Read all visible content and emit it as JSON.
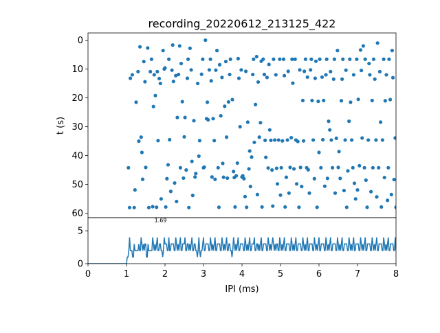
{
  "chart_data": [
    {
      "type": "scatter",
      "panel": "top",
      "title": "recording_20220612_213125_422",
      "xlabel": "",
      "ylabel": "t (s)",
      "xlim": [
        0,
        8
      ],
      "ylim": [
        61.5,
        -2.5
      ],
      "y_inverted": true,
      "yticks": [
        "0",
        "10",
        "20",
        "30",
        "40",
        "50",
        "60"
      ],
      "grid": false,
      "color": "#1f77b4",
      "points": [
        [
          1.05,
          44.2
        ],
        [
          1.08,
          58.0
        ],
        [
          1.1,
          13.2
        ],
        [
          1.15,
          12.0
        ],
        [
          1.2,
          58.0
        ],
        [
          1.22,
          51.9
        ],
        [
          1.25,
          21.5
        ],
        [
          1.3,
          10.9
        ],
        [
          1.32,
          35.0
        ],
        [
          1.35,
          2.3
        ],
        [
          1.38,
          33.6
        ],
        [
          1.4,
          38.9
        ],
        [
          1.42,
          48.2
        ],
        [
          1.45,
          7.4
        ],
        [
          1.48,
          14.4
        ],
        [
          1.5,
          44.1
        ],
        [
          1.55,
          2.7
        ],
        [
          1.58,
          58.0
        ],
        [
          1.62,
          10.9
        ],
        [
          1.65,
          6.6
        ],
        [
          1.68,
          57.7
        ],
        [
          1.7,
          23.0
        ],
        [
          1.72,
          12.0
        ],
        [
          1.75,
          19.2
        ],
        [
          1.78,
          57.9
        ],
        [
          1.8,
          10.9
        ],
        [
          1.82,
          34.8
        ],
        [
          1.85,
          13.3
        ],
        [
          1.88,
          15.0
        ],
        [
          1.9,
          55.0
        ],
        [
          1.95,
          3.6
        ],
        [
          1.98,
          10.0
        ],
        [
          2.0,
          9.6
        ],
        [
          2.02,
          57.8
        ],
        [
          2.05,
          48.0
        ],
        [
          2.08,
          43.2
        ],
        [
          2.1,
          6.6
        ],
        [
          2.12,
          34.5
        ],
        [
          2.15,
          52.4
        ],
        [
          2.18,
          10.4
        ],
        [
          2.2,
          1.7
        ],
        [
          2.22,
          14.3
        ],
        [
          2.25,
          49.5
        ],
        [
          2.28,
          12.3
        ],
        [
          2.3,
          55.9
        ],
        [
          2.32,
          26.8
        ],
        [
          2.35,
          11.9
        ],
        [
          2.38,
          2.0
        ],
        [
          2.4,
          44.2
        ],
        [
          2.42,
          8.1
        ],
        [
          2.45,
          21.3
        ],
        [
          2.48,
          47.8
        ],
        [
          2.5,
          33.5
        ],
        [
          2.52,
          26.8
        ],
        [
          2.55,
          45.0
        ],
        [
          2.58,
          13.2
        ],
        [
          2.6,
          6.6
        ],
        [
          2.62,
          58.0
        ],
        [
          2.65,
          2.8
        ],
        [
          2.68,
          10.3
        ],
        [
          2.7,
          42.0
        ],
        [
          2.72,
          53.8
        ],
        [
          2.75,
          27.9
        ],
        [
          2.78,
          47.4
        ],
        [
          2.8,
          46.2
        ],
        [
          2.85,
          15.0
        ],
        [
          2.88,
          40.2
        ],
        [
          2.9,
          34.8
        ],
        [
          2.95,
          11.8
        ],
        [
          2.98,
          6.6
        ],
        [
          3.0,
          44.2
        ],
        [
          3.02,
          44.0
        ],
        [
          3.05,
          0.0
        ],
        [
          3.08,
          27.2
        ],
        [
          3.1,
          21.5
        ],
        [
          3.12,
          27.6
        ],
        [
          3.15,
          10.3
        ],
        [
          3.18,
          6.6
        ],
        [
          3.2,
          14.1
        ],
        [
          3.22,
          47.4
        ],
        [
          3.25,
          27.2
        ],
        [
          3.28,
          34.8
        ],
        [
          3.3,
          48.2
        ],
        [
          3.32,
          10.4
        ],
        [
          3.35,
          3.6
        ],
        [
          3.38,
          44.2
        ],
        [
          3.4,
          57.9
        ],
        [
          3.42,
          8.5
        ],
        [
          3.45,
          26.2
        ],
        [
          3.48,
          12.9
        ],
        [
          3.5,
          42.7
        ],
        [
          3.52,
          47.5
        ],
        [
          3.55,
          22.9
        ],
        [
          3.58,
          7.4
        ],
        [
          3.6,
          33.6
        ],
        [
          3.62,
          47.8
        ],
        [
          3.65,
          21.4
        ],
        [
          3.68,
          11.9
        ],
        [
          3.7,
          6.6
        ],
        [
          3.75,
          20.6
        ],
        [
          3.78,
          45.5
        ],
        [
          3.8,
          47.6
        ],
        [
          3.82,
          57.8
        ],
        [
          3.85,
          47.0
        ],
        [
          3.88,
          42.6
        ],
        [
          3.9,
          6.4
        ],
        [
          3.92,
          13.2
        ],
        [
          3.95,
          30.0
        ],
        [
          3.98,
          10.3
        ],
        [
          4.0,
          47.4
        ],
        [
          4.02,
          47.0
        ],
        [
          4.05,
          48.0
        ],
        [
          4.08,
          54.2
        ],
        [
          4.1,
          10.8
        ],
        [
          4.12,
          57.9
        ],
        [
          4.15,
          28.4
        ],
        [
          4.18,
          44.6
        ],
        [
          4.2,
          38.4
        ],
        [
          4.22,
          50.7
        ],
        [
          4.25,
          40.5
        ],
        [
          4.28,
          11.9
        ],
        [
          4.3,
          6.6
        ],
        [
          4.32,
          35.4
        ],
        [
          4.35,
          22.3
        ],
        [
          4.38,
          5.7
        ],
        [
          4.4,
          53.5
        ],
        [
          4.42,
          14.5
        ],
        [
          4.45,
          33.6
        ],
        [
          4.48,
          28.6
        ],
        [
          4.5,
          7.3
        ],
        [
          4.52,
          57.8
        ],
        [
          4.55,
          6.6
        ],
        [
          4.58,
          11.9
        ],
        [
          4.6,
          34.7
        ],
        [
          4.62,
          40.6
        ],
        [
          4.65,
          12.9
        ],
        [
          4.68,
          44.3
        ],
        [
          4.7,
          8.4
        ],
        [
          4.72,
          31.1
        ],
        [
          4.75,
          34.7
        ],
        [
          4.78,
          45.0
        ],
        [
          4.8,
          57.5
        ],
        [
          4.82,
          6.6
        ],
        [
          4.85,
          34.6
        ],
        [
          4.88,
          12.0
        ],
        [
          4.9,
          44.4
        ],
        [
          4.92,
          49.8
        ],
        [
          4.95,
          34.6
        ],
        [
          4.98,
          6.6
        ],
        [
          5.0,
          53.7
        ],
        [
          5.02,
          44.2
        ],
        [
          5.05,
          34.9
        ],
        [
          5.08,
          6.6
        ],
        [
          5.1,
          12.3
        ],
        [
          5.12,
          57.8
        ],
        [
          5.15,
          47.5
        ],
        [
          5.18,
          34.6
        ],
        [
          5.2,
          10.8
        ],
        [
          5.22,
          53.0
        ],
        [
          5.25,
          44.1
        ],
        [
          5.28,
          33.8
        ],
        [
          5.3,
          6.6
        ],
        [
          5.32,
          14.9
        ],
        [
          5.35,
          44.6
        ],
        [
          5.38,
          6.6
        ],
        [
          5.4,
          34.6
        ],
        [
          5.42,
          49.8
        ],
        [
          5.45,
          35.1
        ],
        [
          5.48,
          57.9
        ],
        [
          5.5,
          10.3
        ],
        [
          5.52,
          44.1
        ],
        [
          5.55,
          50.7
        ],
        [
          5.58,
          20.9
        ],
        [
          5.6,
          34.9
        ],
        [
          5.62,
          10.8
        ],
        [
          5.65,
          6.6
        ],
        [
          5.68,
          44.2
        ],
        [
          5.7,
          12.8
        ],
        [
          5.72,
          44.9
        ],
        [
          5.75,
          53.0
        ],
        [
          5.78,
          10.3
        ],
        [
          5.8,
          6.6
        ],
        [
          5.82,
          20.9
        ],
        [
          5.85,
          34.6
        ],
        [
          5.88,
          48.0
        ],
        [
          5.9,
          13.2
        ],
        [
          5.92,
          7.3
        ],
        [
          5.95,
          57.9
        ],
        [
          5.98,
          21.2
        ],
        [
          6.0,
          38.9
        ],
        [
          6.02,
          6.6
        ],
        [
          6.05,
          44.2
        ],
        [
          6.08,
          12.8
        ],
        [
          6.1,
          34.5
        ],
        [
          6.12,
          20.9
        ],
        [
          6.15,
          50.6
        ],
        [
          6.18,
          12.0
        ],
        [
          6.2,
          6.6
        ],
        [
          6.22,
          47.9
        ],
        [
          6.25,
          28.1
        ],
        [
          6.28,
          31.1
        ],
        [
          6.3,
          10.9
        ],
        [
          6.32,
          34.6
        ],
        [
          6.35,
          44.2
        ],
        [
          6.38,
          13.5
        ],
        [
          6.4,
          6.6
        ],
        [
          6.42,
          53.0
        ],
        [
          6.45,
          34.0
        ],
        [
          6.48,
          3.6
        ],
        [
          6.5,
          44.1
        ],
        [
          6.52,
          38.6
        ],
        [
          6.55,
          47.9
        ],
        [
          6.58,
          21.0
        ],
        [
          6.6,
          13.5
        ],
        [
          6.62,
          6.6
        ],
        [
          6.65,
          52.1
        ],
        [
          6.68,
          34.6
        ],
        [
          6.7,
          10.4
        ],
        [
          6.72,
          57.9
        ],
        [
          6.75,
          45.3
        ],
        [
          6.78,
          28.1
        ],
        [
          6.8,
          6.6
        ],
        [
          6.82,
          21.5
        ],
        [
          6.85,
          34.6
        ],
        [
          6.88,
          44.2
        ],
        [
          6.9,
          12.0
        ],
        [
          6.92,
          49.6
        ],
        [
          6.95,
          55.0
        ],
        [
          6.98,
          6.6
        ],
        [
          7.0,
          51.9
        ],
        [
          7.02,
          20.5
        ],
        [
          7.05,
          43.5
        ],
        [
          7.08,
          3.4
        ],
        [
          7.1,
          10.5
        ],
        [
          7.12,
          33.9
        ],
        [
          7.15,
          2.0
        ],
        [
          7.18,
          44.2
        ],
        [
          7.2,
          6.6
        ],
        [
          7.22,
          48.5
        ],
        [
          7.25,
          57.9
        ],
        [
          7.28,
          34.6
        ],
        [
          7.3,
          8.1
        ],
        [
          7.32,
          12.0
        ],
        [
          7.35,
          52.5
        ],
        [
          7.38,
          20.9
        ],
        [
          7.4,
          44.2
        ],
        [
          7.42,
          6.6
        ],
        [
          7.45,
          13.5
        ],
        [
          7.48,
          34.6
        ],
        [
          7.5,
          54.3
        ],
        [
          7.52,
          1.0
        ],
        [
          7.55,
          44.2
        ],
        [
          7.58,
          10.9
        ],
        [
          7.6,
          28.4
        ],
        [
          7.62,
          57.8
        ],
        [
          7.65,
          34.6
        ],
        [
          7.68,
          6.6
        ],
        [
          7.7,
          47.6
        ],
        [
          7.72,
          21.0
        ],
        [
          7.75,
          12.0
        ],
        [
          7.78,
          55.5
        ],
        [
          7.8,
          44.2
        ],
        [
          7.82,
          6.6
        ],
        [
          7.85,
          20.6
        ],
        [
          7.88,
          53.5
        ],
        [
          7.9,
          3.6
        ],
        [
          7.92,
          13.0
        ],
        [
          7.95,
          48.3
        ],
        [
          7.98,
          33.9
        ],
        [
          8.0,
          57.9
        ]
      ]
    },
    {
      "type": "line",
      "panel": "bottom",
      "xlabel": "IPI (ms)",
      "ylabel": "",
      "xlim": [
        0,
        8
      ],
      "ylim": [
        0,
        7
      ],
      "xticks": [
        "0",
        "1",
        "2",
        "3",
        "4",
        "5",
        "6",
        "7",
        "8"
      ],
      "yticks": [
        "0",
        "5"
      ],
      "annotation": {
        "text": "1.69",
        "x": 1.69,
        "y": 6
      },
      "color": "#1f77b4",
      "grid": false
    }
  ]
}
